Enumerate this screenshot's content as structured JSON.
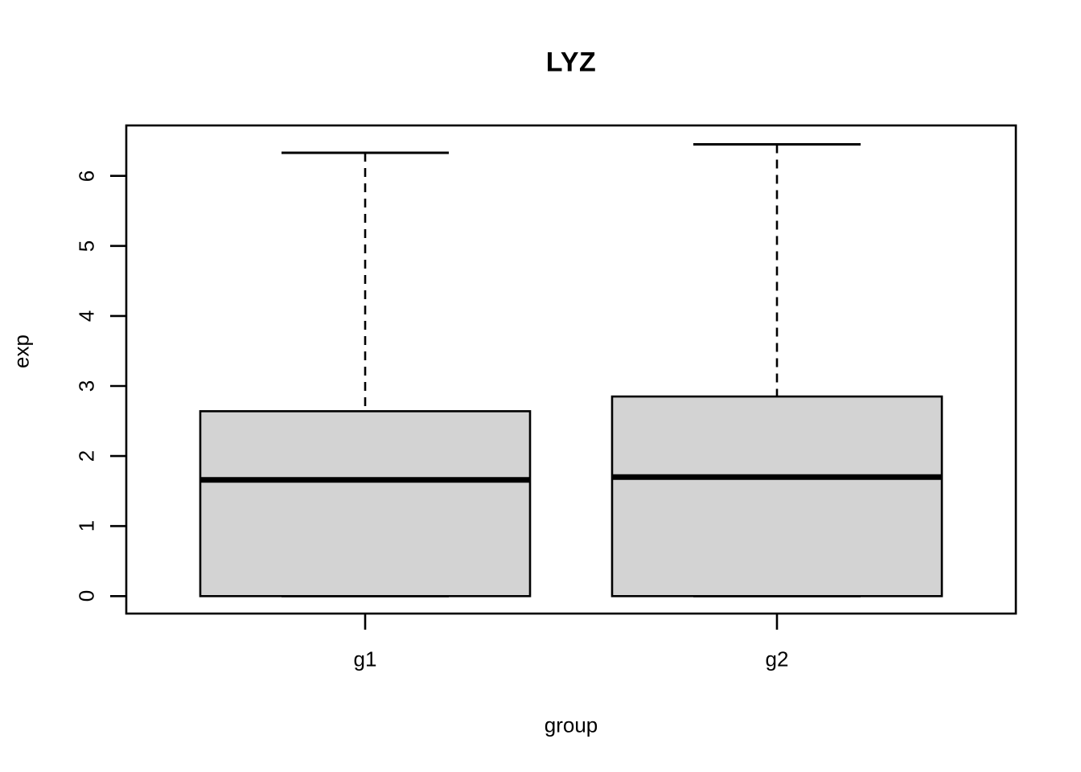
{
  "chart_data": {
    "type": "boxplot",
    "title": "LYZ",
    "xlabel": "group",
    "ylabel": "exp",
    "categories": [
      "g1",
      "g2"
    ],
    "ytick_labels": [
      "0",
      "1",
      "2",
      "3",
      "4",
      "5",
      "6"
    ],
    "ytick_values": [
      0,
      1,
      2,
      3,
      4,
      5,
      6
    ],
    "ylim": [
      0,
      6.45
    ],
    "grid": false,
    "legend": "none",
    "series": [
      {
        "name": "g1",
        "min": 0,
        "q1": 0,
        "median": 1.66,
        "q3": 2.64,
        "max": 6.33,
        "outliers": []
      },
      {
        "name": "g2",
        "min": 0,
        "q1": 0,
        "median": 1.7,
        "q3": 2.85,
        "max": 6.45,
        "outliers": []
      }
    ],
    "colors": {
      "box_fill": "#D3D3D3",
      "line": "#000000",
      "background": "#FFFFFF"
    }
  }
}
